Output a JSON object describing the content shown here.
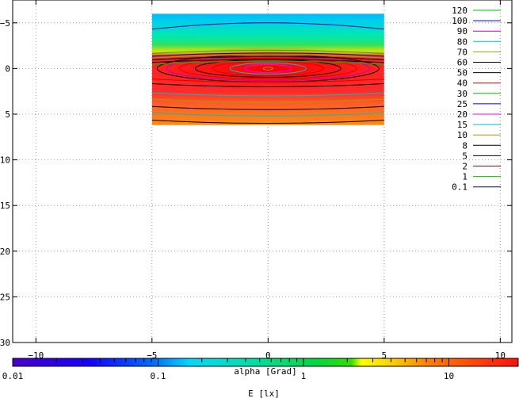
{
  "chart_data": {
    "type": "heatmap",
    "title": "",
    "xlabel": "alpha [Grad]",
    "ylabel": "",
    "xlim": [
      -11,
      10.5
    ],
    "ylim": [
      30,
      -7.5
    ],
    "y_inverted": true,
    "x_ticks": [
      -10,
      -5,
      0,
      5,
      10
    ],
    "x_tick_labels": [
      "−10",
      "−5",
      "0",
      "5",
      "10"
    ],
    "y_ticks": [
      -5,
      0,
      5,
      10,
      15,
      20,
      25,
      30
    ],
    "y_tick_labels": [
      "−5",
      "0",
      "5",
      "10",
      "15",
      "20",
      "25",
      "30"
    ],
    "grid": true,
    "legend_position": "top-right",
    "heatmap_extent": {
      "x": [
        -5,
        5
      ],
      "y": [
        -6,
        6.2
      ]
    },
    "peak": {
      "x": 0,
      "y": 0
    },
    "color_scale": "log",
    "colorbar": {
      "label": "E [lx]",
      "ticks": [
        "0.01",
        "0.1",
        "1",
        "10"
      ],
      "range": [
        0.01,
        30
      ]
    },
    "contour_levels": [
      {
        "level": "120",
        "color": "#00c000"
      },
      {
        "level": "100",
        "color": "#0000c0"
      },
      {
        "level": "90",
        "color": "#c000c0"
      },
      {
        "level": "80",
        "color": "#00c0c0"
      },
      {
        "level": "70",
        "color": "#a0a000"
      },
      {
        "level": "60",
        "color": "#000000"
      },
      {
        "level": "50",
        "color": "#000000"
      },
      {
        "level": "40",
        "color": "#e00000"
      },
      {
        "level": "30",
        "color": "#00c000"
      },
      {
        "level": "25",
        "color": "#0000c0"
      },
      {
        "level": "20",
        "color": "#ff00ff"
      },
      {
        "level": "15",
        "color": "#00c0c0"
      },
      {
        "level": "10",
        "color": "#a0a000"
      },
      {
        "level": "8",
        "color": "#000000"
      },
      {
        "level": "5",
        "color": "#000000"
      },
      {
        "level": "2",
        "color": "#e00000"
      },
      {
        "level": "1",
        "color": "#00c000"
      },
      {
        "level": "0.1",
        "color": "#0000c0"
      }
    ]
  }
}
